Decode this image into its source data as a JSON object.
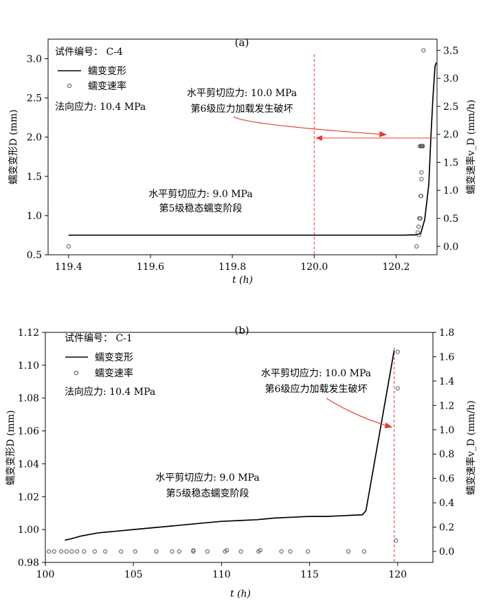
{
  "chart_data": [
    {
      "type": "line+scatter",
      "panel_label": "(a)",
      "xlabel": "t (h)",
      "ylabel_left": "蠕变变形D (mm)",
      "ylabel_right": "蠕变速率v_D (mm/h)",
      "xlim": [
        119.35,
        120.3
      ],
      "ylim_left": [
        0.5,
        3.25
      ],
      "ylim_right": [
        -0.15,
        3.7
      ],
      "xticks": [
        "119.4",
        "119.6",
        "119.8",
        "120.0",
        "120.2"
      ],
      "xtick_values": [
        119.4,
        119.6,
        119.8,
        120.0,
        120.2
      ],
      "yticks_left": [
        "0.5",
        "1.0",
        "1.5",
        "2.0",
        "2.5",
        "3.0"
      ],
      "ytick_values_left": [
        0.5,
        1.0,
        1.5,
        2.0,
        2.5,
        3.0
      ],
      "yticks_right": [
        "0.0",
        "0.5",
        "1.0",
        "1.5",
        "2.0",
        "2.5",
        "3.0",
        "3.5"
      ],
      "ytick_values_right": [
        0.0,
        0.5,
        1.0,
        1.5,
        2.0,
        2.5,
        3.0,
        3.5
      ],
      "legend": {
        "specimen": "试件编号：  C-4",
        "line_label": "蠕变变形",
        "marker_label": "蠕变速率",
        "normal_stress": "法向应力: 10.4 MPa"
      },
      "annotations": {
        "stage5_line1": "水平剪切应力: 9.0 MPa",
        "stage5_line2": "第5级稳态蠕变阶段",
        "stage6_line1": "水平剪切应力: 10.0 MPa",
        "stage6_line2": "第6级应力加载发生破坏"
      },
      "vline_x": 120.0,
      "arrow_right_to": 2.0,
      "colors": {
        "line": "#000000",
        "marker": "#555555",
        "annotation": "#e8392e"
      },
      "deformation": {
        "x": [
          119.4,
          120.0,
          120.22,
          120.25,
          120.26,
          120.27,
          120.28,
          120.285,
          120.29,
          120.295,
          120.298
        ],
        "y": [
          0.75,
          0.75,
          0.75,
          0.755,
          0.77,
          0.95,
          1.4,
          2.0,
          2.5,
          2.9,
          2.95
        ]
      },
      "rate": {
        "x": [
          119.4,
          120.25,
          120.253,
          120.255,
          120.256,
          120.257,
          120.258,
          120.259,
          120.26,
          120.261,
          120.262,
          120.263,
          120.264,
          120.265,
          120.262,
          120.263,
          120.264,
          120.258,
          120.261,
          120.264,
          120.265,
          120.267,
          120.262
        ],
        "y": [
          0.0,
          0.0,
          0.25,
          0.35,
          0.2,
          0.5,
          0.5,
          0.5,
          0.9,
          0.9,
          1.2,
          1.79,
          1.79,
          1.79,
          1.79,
          1.79,
          1.79,
          1.79,
          1.79,
          1.79,
          1.79,
          3.5,
          1.32
        ]
      }
    },
    {
      "type": "line+scatter",
      "panel_label": "(b)",
      "xlabel": "t (h)",
      "ylabel_left": "蠕变变形D (mm)",
      "ylabel_right": "蠕变速率v_D (mm/h)",
      "xlim": [
        100,
        122
      ],
      "ylim_left": [
        0.98,
        1.12
      ],
      "ylim_right": [
        -0.09,
        1.8
      ],
      "xticks": [
        "100",
        "105",
        "110",
        "115",
        "120"
      ],
      "xtick_values": [
        100,
        105,
        110,
        115,
        120
      ],
      "yticks_left": [
        "0.98",
        "1.00",
        "1.02",
        "1.04",
        "1.06",
        "1.08",
        "1.10",
        "1.12"
      ],
      "ytick_values_left": [
        0.98,
        1.0,
        1.02,
        1.04,
        1.06,
        1.08,
        1.1,
        1.12
      ],
      "yticks_right": [
        "0.0",
        "0.2",
        "0.4",
        "0.6",
        "0.8",
        "1.0",
        "1.2",
        "1.4",
        "1.6",
        "1.8"
      ],
      "ytick_values_right": [
        0.0,
        0.2,
        0.4,
        0.6,
        0.8,
        1.0,
        1.2,
        1.4,
        1.6,
        1.8
      ],
      "legend": {
        "specimen": "试件编号：  C-1",
        "line_label": "蠕变变形",
        "marker_label": "蠕变速率",
        "normal_stress": "法向应力: 10.4 MPa"
      },
      "annotations": {
        "stage5_line1": "水平剪切应力: 9.0 MPa",
        "stage5_line2": "第5级稳态蠕变阶段",
        "stage6_line1": "水平剪切应力: 10.0 MPa",
        "stage6_line2": "第6级应力加载发生破坏"
      },
      "vline_x": 119.8,
      "colors": {
        "line": "#000000",
        "marker": "#555555",
        "annotation": "#e8392e"
      },
      "deformation": {
        "x": [
          101.1,
          101.5,
          102,
          102.5,
          103,
          103.5,
          104,
          105,
          106,
          107,
          108,
          109,
          110,
          111,
          112,
          113,
          114,
          115,
          116,
          117,
          118,
          118.2,
          119.8
        ],
        "y": [
          0.9935,
          0.9945,
          0.996,
          0.997,
          0.998,
          0.9985,
          0.999,
          1.0,
          1.001,
          1.002,
          1.003,
          1.004,
          1.005,
          1.0055,
          1.006,
          1.007,
          1.0075,
          1.008,
          1.008,
          1.0085,
          1.009,
          1.0115,
          1.109
        ]
      },
      "rate": {
        "x": [
          100.2,
          100.5,
          100.9,
          101.2,
          101.5,
          101.8,
          102.2,
          102.8,
          103.4,
          104.3,
          105.1,
          106.3,
          107.2,
          107.6,
          108.4,
          108.4,
          109.2,
          110.2,
          110.3,
          111.1,
          112.1,
          112.2,
          113.4,
          113.9,
          114.9,
          117.2,
          118.1,
          119.9,
          120.0,
          120.0
        ],
        "y": [
          0.0,
          0.0,
          0.0,
          0.0,
          0.0,
          0.0,
          0.0,
          0.0,
          0.0,
          0.0,
          0.0,
          0.0,
          0.0,
          0.0,
          0.0,
          0.01,
          0.0,
          0.0,
          0.01,
          0.0,
          0.0,
          0.01,
          0.0,
          0.0,
          0.0,
          0.0,
          0.0,
          0.09,
          1.34,
          1.64
        ]
      }
    }
  ]
}
